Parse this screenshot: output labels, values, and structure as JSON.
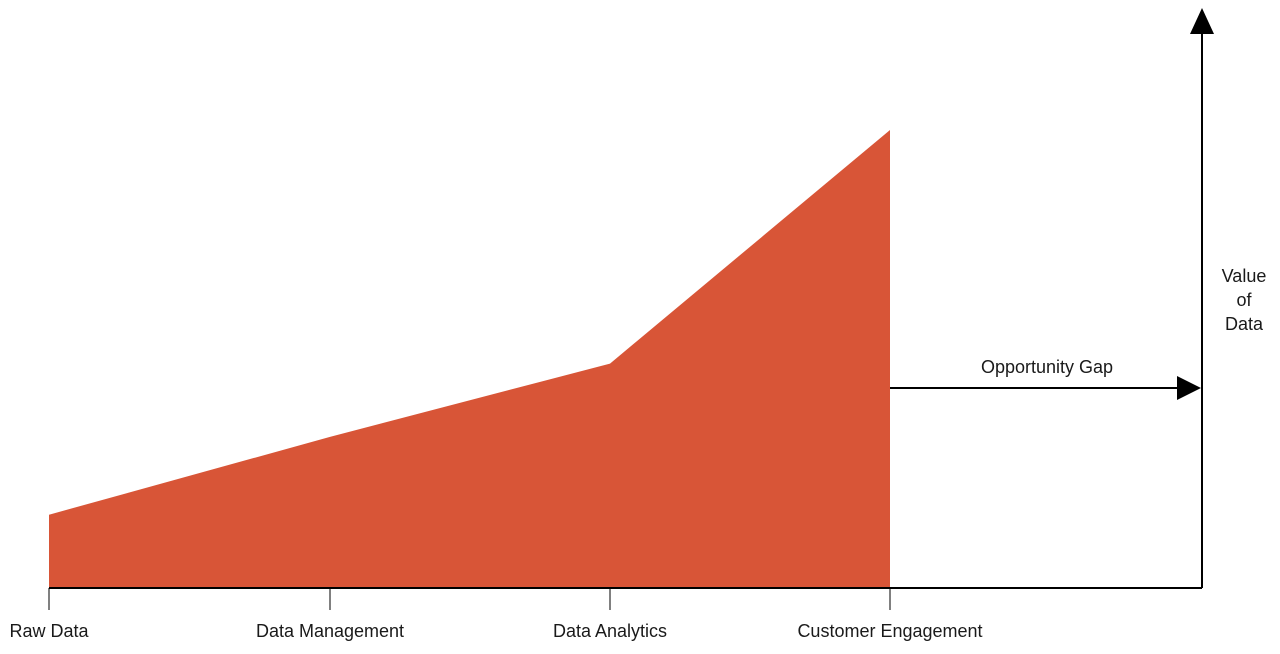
{
  "colors": {
    "area": "#D85537",
    "axis": "#000000",
    "text": "#1a1a1a"
  },
  "chart_data": {
    "type": "area",
    "categories": [
      "Raw Data",
      "Data Management",
      "Data Analytics",
      "Customer Engagement"
    ],
    "values": [
      16,
      33,
      49,
      100
    ],
    "ylabel_lines": [
      "Value",
      "of",
      "Data"
    ],
    "annotation": {
      "label": "Opportunity Gap",
      "y": 44
    },
    "ylim": [
      0,
      100
    ],
    "grid": false,
    "legend": "none"
  }
}
